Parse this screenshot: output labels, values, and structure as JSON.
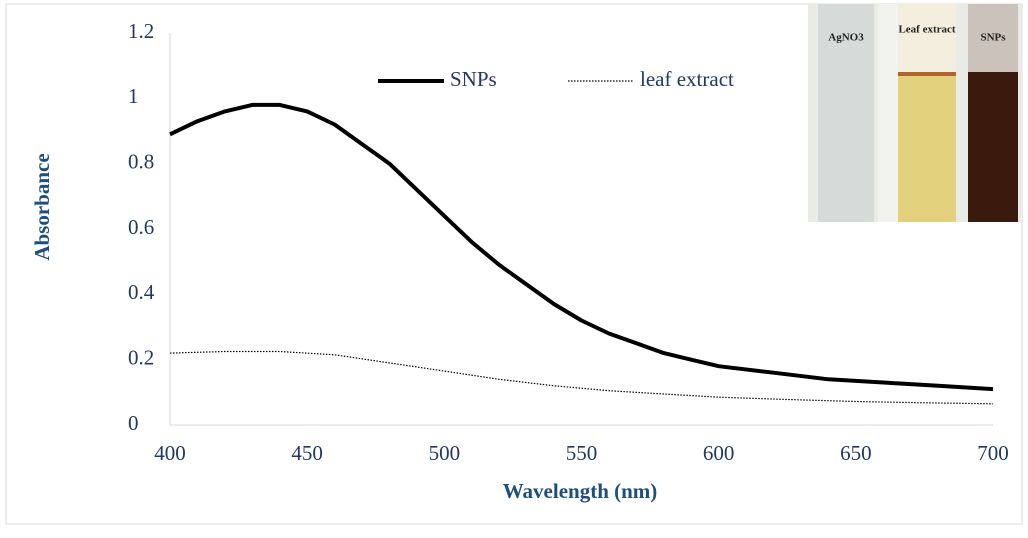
{
  "chart_data": {
    "type": "line",
    "xlabel": "Wavelength (nm)",
    "ylabel": "Absorbance",
    "xlim": [
      400,
      700
    ],
    "xticks": [
      400,
      450,
      500,
      550,
      600,
      650,
      700
    ],
    "ylim": [
      0,
      1.2
    ],
    "yticks": [
      0,
      0.2,
      0.4,
      0.6,
      0.8,
      1,
      1.2
    ],
    "legend": "top",
    "series": [
      {
        "name": "SNPs",
        "color": "#000000",
        "style": "solid",
        "x": [
          400,
          410,
          420,
          430,
          440,
          450,
          460,
          470,
          480,
          490,
          500,
          510,
          520,
          530,
          540,
          550,
          560,
          570,
          580,
          590,
          600,
          620,
          640,
          660,
          680,
          700
        ],
        "values": [
          0.89,
          0.93,
          0.96,
          0.98,
          0.98,
          0.96,
          0.92,
          0.86,
          0.8,
          0.72,
          0.64,
          0.56,
          0.49,
          0.43,
          0.37,
          0.32,
          0.28,
          0.25,
          0.22,
          0.2,
          0.18,
          0.16,
          0.14,
          0.13,
          0.12,
          0.11
        ]
      },
      {
        "name": "leaf extract",
        "color": "#000000",
        "style": "dotted",
        "x": [
          400,
          420,
          440,
          460,
          480,
          500,
          520,
          540,
          560,
          580,
          600,
          625,
          650,
          675,
          700
        ],
        "values": [
          0.22,
          0.225,
          0.225,
          0.215,
          0.19,
          0.165,
          0.14,
          0.12,
          0.105,
          0.095,
          0.085,
          0.078,
          0.072,
          0.068,
          0.065
        ]
      }
    ],
    "inset_labels": [
      "AgNO3",
      "Leaf extract",
      "SNPs"
    ]
  }
}
